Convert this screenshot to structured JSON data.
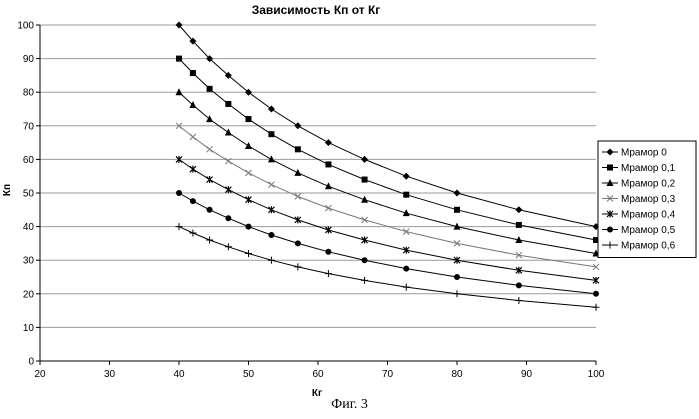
{
  "caption": "Фиг. 3",
  "chart_data": {
    "type": "line",
    "title": "Зависимость Кп от Кг",
    "xlabel": "Кг",
    "ylabel": "Кп",
    "xlim": [
      20,
      100
    ],
    "ylim": [
      0,
      100
    ],
    "xticks": [
      "20",
      "30",
      "40",
      "50",
      "60",
      "70",
      "80",
      "90",
      "100"
    ],
    "yticks": [
      "0",
      "10",
      "20",
      "30",
      "40",
      "50",
      "60",
      "70",
      "80",
      "90",
      "100"
    ],
    "grid": "horizontal",
    "legend_position": "right",
    "series": [
      {
        "name": "Мрамор 0",
        "marker": "diamond",
        "x": [
          40,
          42,
          44.4,
          47.1,
          50,
          53.3,
          57.1,
          61.5,
          66.7,
          72.7,
          80,
          88.9,
          100
        ],
        "y": [
          100,
          95.2,
          90,
          85,
          80,
          75,
          70,
          65,
          60,
          55,
          50,
          45,
          40
        ]
      },
      {
        "name": "Мрамор 0,1",
        "marker": "square",
        "x": [
          40,
          42,
          44.4,
          47.1,
          50,
          53.3,
          57.1,
          61.5,
          66.7,
          72.7,
          80,
          88.9,
          100
        ],
        "y": [
          90,
          85.7,
          81,
          76.5,
          72,
          67.5,
          63,
          58.5,
          54,
          49.5,
          45,
          40.5,
          36
        ]
      },
      {
        "name": "Мрамор 0,2",
        "marker": "triangle",
        "x": [
          40,
          42,
          44.4,
          47.1,
          50,
          53.3,
          57.1,
          61.5,
          66.7,
          72.7,
          80,
          88.9,
          100
        ],
        "y": [
          80,
          76.2,
          72,
          68,
          64,
          60,
          56,
          52,
          48,
          44,
          40,
          36,
          32
        ]
      },
      {
        "name": "Мрамор 0,3",
        "marker": "x",
        "x": [
          40,
          42,
          44.4,
          47.1,
          50,
          53.3,
          57.1,
          61.5,
          66.7,
          72.7,
          80,
          88.9,
          100
        ],
        "y": [
          70,
          66.7,
          63,
          59.5,
          56,
          52.5,
          49,
          45.5,
          42,
          38.5,
          35,
          31.5,
          28
        ]
      },
      {
        "name": "Мрамор 0,4",
        "marker": "star",
        "x": [
          40,
          42,
          44.4,
          47.1,
          50,
          53.3,
          57.1,
          61.5,
          66.7,
          72.7,
          80,
          88.9,
          100
        ],
        "y": [
          60,
          57.1,
          54,
          51,
          48,
          45,
          42,
          39,
          36,
          33,
          30,
          27,
          24
        ]
      },
      {
        "name": "Мрамор 0,5",
        "marker": "circle",
        "x": [
          40,
          42,
          44.4,
          47.1,
          50,
          53.3,
          57.1,
          61.5,
          66.7,
          72.7,
          80,
          88.9,
          100
        ],
        "y": [
          50,
          47.6,
          45,
          42.5,
          40,
          37.5,
          35,
          32.5,
          30,
          27.5,
          25,
          22.5,
          20
        ]
      },
      {
        "name": "Мрамор 0,6",
        "marker": "plus",
        "x": [
          40,
          42,
          44.4,
          47.1,
          50,
          53.3,
          57.1,
          61.5,
          66.7,
          72.7,
          80,
          88.9,
          100
        ],
        "y": [
          40,
          38.1,
          36,
          34,
          32,
          30,
          28,
          26,
          24,
          22,
          20,
          18,
          16
        ]
      }
    ]
  }
}
